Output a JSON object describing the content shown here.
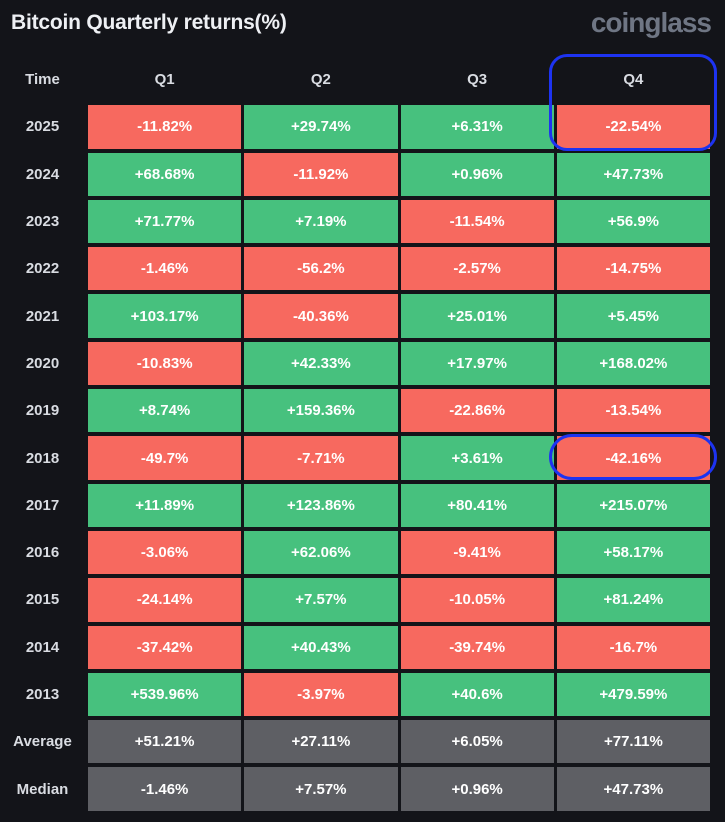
{
  "header": {
    "title": "Bitcoin Quarterly returns(%)",
    "logo": "coinglass"
  },
  "table": {
    "columns": [
      "Time",
      "Q1",
      "Q2",
      "Q3",
      "Q4"
    ],
    "rows": [
      {
        "label": "2025",
        "values": [
          "-11.82%",
          "+29.74%",
          "+6.31%",
          "-22.54%"
        ]
      },
      {
        "label": "2024",
        "values": [
          "+68.68%",
          "-11.92%",
          "+0.96%",
          "+47.73%"
        ]
      },
      {
        "label": "2023",
        "values": [
          "+71.77%",
          "+7.19%",
          "-11.54%",
          "+56.9%"
        ]
      },
      {
        "label": "2022",
        "values": [
          "-1.46%",
          "-56.2%",
          "-2.57%",
          "-14.75%"
        ]
      },
      {
        "label": "2021",
        "values": [
          "+103.17%",
          "-40.36%",
          "+25.01%",
          "+5.45%"
        ]
      },
      {
        "label": "2020",
        "values": [
          "-10.83%",
          "+42.33%",
          "+17.97%",
          "+168.02%"
        ]
      },
      {
        "label": "2019",
        "values": [
          "+8.74%",
          "+159.36%",
          "-22.86%",
          "-13.54%"
        ]
      },
      {
        "label": "2018",
        "values": [
          "-49.7%",
          "-7.71%",
          "+3.61%",
          "-42.16%"
        ]
      },
      {
        "label": "2017",
        "values": [
          "+11.89%",
          "+123.86%",
          "+80.41%",
          "+215.07%"
        ]
      },
      {
        "label": "2016",
        "values": [
          "-3.06%",
          "+62.06%",
          "-9.41%",
          "+58.17%"
        ]
      },
      {
        "label": "2015",
        "values": [
          "-24.14%",
          "+7.57%",
          "-10.05%",
          "+81.24%"
        ]
      },
      {
        "label": "2014",
        "values": [
          "-37.42%",
          "+40.43%",
          "-39.74%",
          "-16.7%"
        ]
      },
      {
        "label": "2013",
        "values": [
          "+539.96%",
          "-3.97%",
          "+40.6%",
          "+479.59%"
        ]
      },
      {
        "label": "Average",
        "summary": true,
        "values": [
          "+51.21%",
          "+27.11%",
          "+6.05%",
          "+77.11%"
        ]
      },
      {
        "label": "Median",
        "summary": true,
        "values": [
          "-1.46%",
          "+7.57%",
          "+0.96%",
          "+47.73%"
        ]
      }
    ]
  },
  "highlights": {
    "q4_2025_box": "blue rounded box around Q4 column header and 2025 Q4 cell",
    "q4_2018_box": "blue rounded box around 2018 Q4 cell"
  },
  "colors": {
    "positive": "#47c17e",
    "negative": "#f7695f",
    "neutral": "#5e5f64",
    "highlight": "#1d33f1",
    "background": "#131419"
  },
  "chart_data": {
    "type": "heatmap",
    "title": "Bitcoin Quarterly returns(%)",
    "columns": [
      "Q1",
      "Q2",
      "Q3",
      "Q4"
    ],
    "rows": [
      "2025",
      "2024",
      "2023",
      "2022",
      "2021",
      "2020",
      "2019",
      "2018",
      "2017",
      "2016",
      "2015",
      "2014",
      "2013",
      "Average",
      "Median"
    ],
    "values": [
      [
        -11.82,
        29.74,
        6.31,
        -22.54
      ],
      [
        68.68,
        -11.92,
        0.96,
        47.73
      ],
      [
        71.77,
        7.19,
        -11.54,
        56.9
      ],
      [
        -1.46,
        -56.2,
        -2.57,
        -14.75
      ],
      [
        103.17,
        -40.36,
        25.01,
        5.45
      ],
      [
        -10.83,
        42.33,
        17.97,
        168.02
      ],
      [
        8.74,
        159.36,
        -22.86,
        -13.54
      ],
      [
        -49.7,
        -7.71,
        3.61,
        -42.16
      ],
      [
        11.89,
        123.86,
        80.41,
        215.07
      ],
      [
        -3.06,
        62.06,
        -9.41,
        58.17
      ],
      [
        -24.14,
        7.57,
        -10.05,
        81.24
      ],
      [
        -37.42,
        40.43,
        -39.74,
        -16.7
      ],
      [
        539.96,
        -3.97,
        40.6,
        479.59
      ],
      [
        51.21,
        27.11,
        6.05,
        77.11
      ],
      [
        -1.46,
        7.57,
        0.96,
        47.73
      ]
    ],
    "color_rule": "positive=green, negative=red, Average/Median rows=gray",
    "annotations": [
      "Q4 header + 2025 Q4 cell outlined in blue",
      "2018 Q4 cell outlined in blue"
    ]
  }
}
